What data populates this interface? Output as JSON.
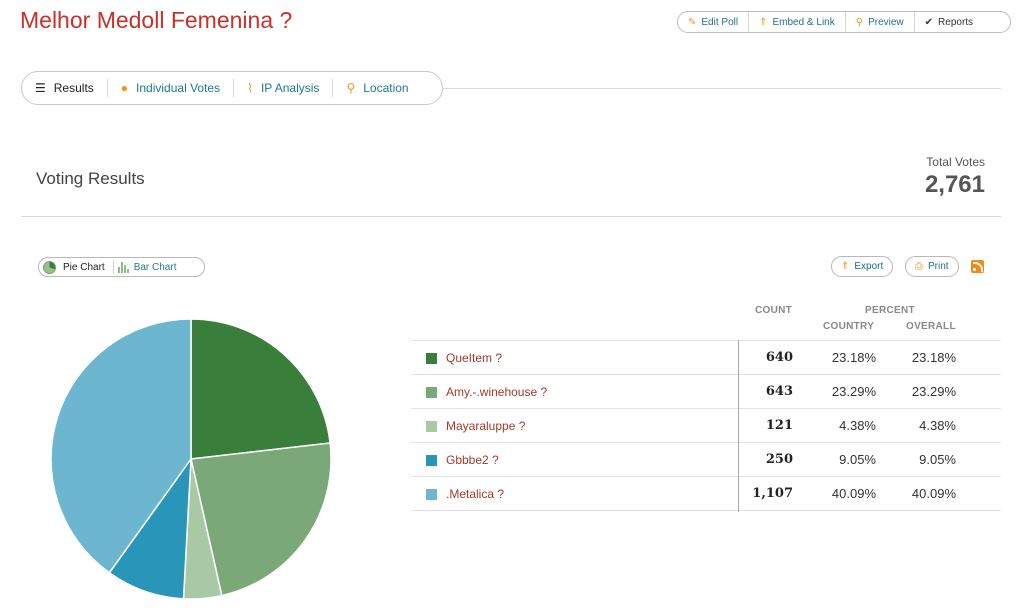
{
  "poll": {
    "title": "Melhor Medoll Femenina ?"
  },
  "actions": [
    {
      "label": "Edit Poll",
      "icon": "pencil-icon"
    },
    {
      "label": "Embed & Link",
      "icon": "upload-arrow-icon"
    },
    {
      "label": "Preview",
      "icon": "magnifier-icon"
    },
    {
      "label": "Reports",
      "icon": "checkmark-icon"
    }
  ],
  "tabs": [
    {
      "label": "Results",
      "icon": "list-icon",
      "active": true
    },
    {
      "label": "Individual Votes",
      "icon": "person-icon"
    },
    {
      "label": "IP Analysis",
      "icon": "line-chart-icon"
    },
    {
      "label": "Location",
      "icon": "map-pin-icon"
    }
  ],
  "summary": {
    "section_title": "Voting Results",
    "total_label": "Total Votes",
    "total_value": "2,761"
  },
  "chart_toggle": {
    "pie_label": "Pie Chart",
    "bar_label": "Bar Chart"
  },
  "buttons": {
    "export_label": "Export",
    "print_label": "Print"
  },
  "table": {
    "count_header": "COUNT",
    "percent_header": "PERCENT",
    "country_header": "COUNTRY",
    "overall_header": "OVERALL",
    "rows": [
      {
        "label": "QueItem ?",
        "count": "640",
        "country": "23.18%",
        "overall": "23.18%",
        "color": "#3a7e3b"
      },
      {
        "label": "Amy.-.winehouse ?",
        "count": "643",
        "country": "23.29%",
        "overall": "23.29%",
        "color": "#7aa878"
      },
      {
        "label": "Mayaraluppe ?",
        "count": "121",
        "country": "4.38%",
        "overall": "4.38%",
        "color": "#a9c9a6"
      },
      {
        "label": "Gbbbe2 ?",
        "count": "250",
        "country": "9.05%",
        "overall": "9.05%",
        "color": "#2895b9"
      },
      {
        "label": ".Metalica ?",
        "count": "1,107",
        "country": "40.09%",
        "overall": "40.09%",
        "color": "#6db6cf"
      }
    ]
  },
  "chart_data": {
    "type": "pie",
    "categories": [
      "QueItem ?",
      "Amy.-.winehouse ?",
      "Mayaraluppe ?",
      "Gbbbe2 ?",
      ".Metalica ?"
    ],
    "values": [
      640,
      643,
      121,
      250,
      1107
    ],
    "colors": [
      "#3a7e3b",
      "#7aa878",
      "#a9c9a6",
      "#2895b9",
      "#6db6cf"
    ]
  }
}
